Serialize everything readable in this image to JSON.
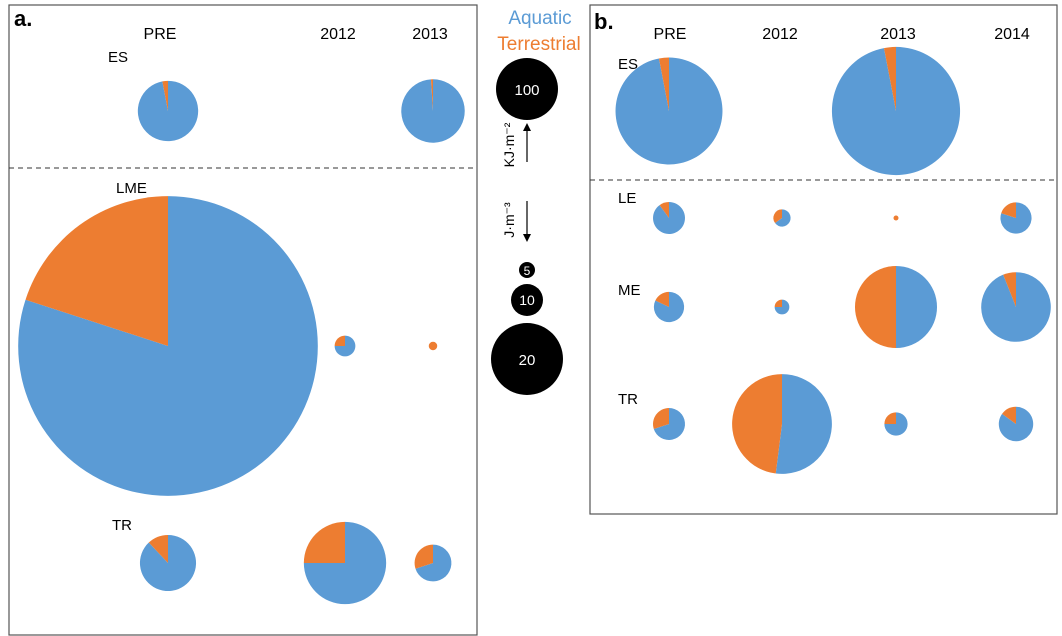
{
  "colors": {
    "aquatic": "#5b9bd5",
    "terrestrial": "#ed7d31",
    "scale_fill": "#000000",
    "frame": "#555555"
  },
  "legend": {
    "aquatic": "Aquatic",
    "terrestrial": "Terrestrial"
  },
  "scale": {
    "upper_unit": "KJ·m⁻²",
    "lower_unit": "J·m⁻³",
    "upper_values": [
      "100"
    ],
    "lower_values": [
      "5",
      "10",
      "20"
    ]
  },
  "chart_data": [
    {
      "type": "pie",
      "panel": "a.",
      "columns": [
        "PRE",
        "2012",
        "2013"
      ],
      "rows": [
        {
          "label": "ES",
          "unit": "KJ·m⁻²",
          "cells": [
            {
              "col": "PRE",
              "total": 47,
              "terrestrial_fraction": 0.03
            },
            {
              "col": "2013",
              "total": 52,
              "terrestrial_fraction": 0.01
            }
          ]
        },
        {
          "label": "LME",
          "unit": "J·m⁻³",
          "cells": [
            {
              "col": "PRE",
              "total": 125,
              "terrestrial_fraction": 0.2
            },
            {
              "col": "2012",
              "total": 0.6,
              "terrestrial_fraction": 0.25
            },
            {
              "col": "2013",
              "total": 0.1,
              "terrestrial_fraction": 1.0
            }
          ]
        },
        {
          "label": "TR",
          "unit": "J·m⁻³",
          "cells": [
            {
              "col": "PRE",
              "total": 6.5,
              "terrestrial_fraction": 0.12
            },
            {
              "col": "2012",
              "total": 14,
              "terrestrial_fraction": 0.25
            },
            {
              "col": "2013",
              "total": 2.8,
              "terrestrial_fraction": 0.3
            }
          ]
        }
      ]
    },
    {
      "type": "pie",
      "panel": "b.",
      "columns": [
        "PRE",
        "2012",
        "2013",
        "2014"
      ],
      "rows": [
        {
          "label": "ES",
          "unit": "KJ·m⁻²",
          "cells": [
            {
              "col": "PRE",
              "total": 85,
              "terrestrial_fraction": 0.03
            },
            {
              "col": "2013",
              "total": 122,
              "terrestrial_fraction": 0.03
            }
          ]
        },
        {
          "label": "LE",
          "unit": "J·m⁻³",
          "cells": [
            {
              "col": "PRE",
              "total": 1.9,
              "terrestrial_fraction": 0.1
            },
            {
              "col": "2012",
              "total": 0.55,
              "terrestrial_fraction": 0.35
            },
            {
              "col": "2013",
              "total": 0.03,
              "terrestrial_fraction": 1.0
            },
            {
              "col": "2014",
              "total": 1.8,
              "terrestrial_fraction": 0.2
            }
          ]
        },
        {
          "label": "ME",
          "unit": "J·m⁻³",
          "cells": [
            {
              "col": "PRE",
              "total": 1.7,
              "terrestrial_fraction": 0.18
            },
            {
              "col": "2012",
              "total": 0.4,
              "terrestrial_fraction": 0.25
            },
            {
              "col": "2013",
              "total": 12.5,
              "terrestrial_fraction": 0.5
            },
            {
              "col": "2014",
              "total": 9,
              "terrestrial_fraction": 0.06
            }
          ]
        },
        {
          "label": "TR",
          "unit": "J·m⁻³",
          "cells": [
            {
              "col": "PRE",
              "total": 1.9,
              "terrestrial_fraction": 0.3
            },
            {
              "col": "2012",
              "total": 18.5,
              "terrestrial_fraction": 0.48
            },
            {
              "col": "2013",
              "total": 1.0,
              "terrestrial_fraction": 0.25
            },
            {
              "col": "2014",
              "total": 2.2,
              "terrestrial_fraction": 0.15
            }
          ]
        }
      ]
    }
  ]
}
